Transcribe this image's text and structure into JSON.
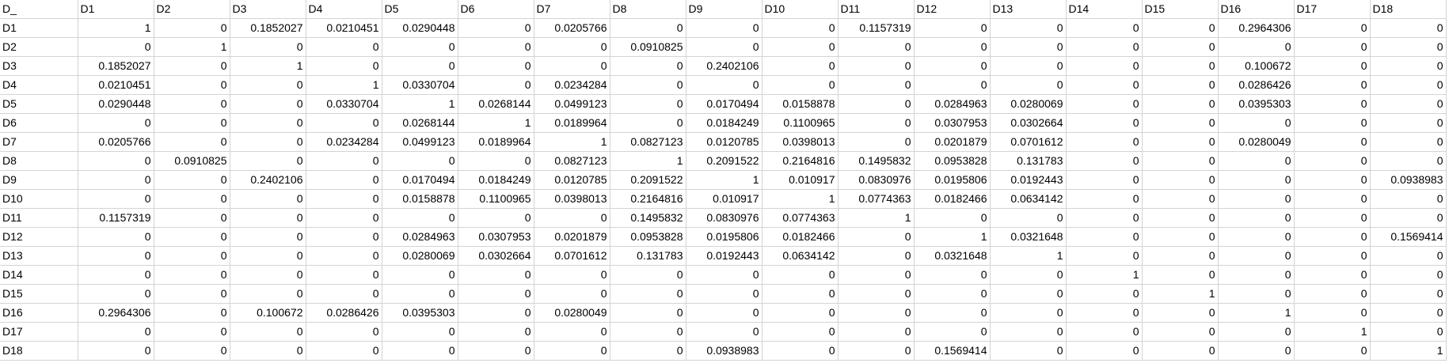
{
  "sheet": {
    "corner_label": "D_",
    "column_headers": [
      "D1",
      "D2",
      "D3",
      "D4",
      "D5",
      "D6",
      "D7",
      "D8",
      "D9",
      "D10",
      "D11",
      "D12",
      "D13",
      "D14",
      "D15",
      "D16",
      "D17",
      "D18"
    ],
    "rows": [
      {
        "label": "D1",
        "cells": [
          "1",
          "0",
          "0.1852027",
          "0.0210451",
          "0.0290448",
          "0",
          "0.0205766",
          "0",
          "0",
          "0",
          "0.1157319",
          "0",
          "0",
          "0",
          "0",
          "0.2964306",
          "0",
          "0"
        ]
      },
      {
        "label": "D2",
        "cells": [
          "0",
          "1",
          "0",
          "0",
          "0",
          "0",
          "0",
          "0.0910825",
          "0",
          "0",
          "0",
          "0",
          "0",
          "0",
          "0",
          "0",
          "0",
          "0"
        ]
      },
      {
        "label": "D3",
        "cells": [
          "0.1852027",
          "0",
          "1",
          "0",
          "0",
          "0",
          "0",
          "0",
          "0.2402106",
          "0",
          "0",
          "0",
          "0",
          "0",
          "0",
          "0.100672",
          "0",
          "0"
        ]
      },
      {
        "label": "D4",
        "cells": [
          "0.0210451",
          "0",
          "0",
          "1",
          "0.0330704",
          "0",
          "0.0234284",
          "0",
          "0",
          "0",
          "0",
          "0",
          "0",
          "0",
          "0",
          "0.0286426",
          "0",
          "0"
        ]
      },
      {
        "label": "D5",
        "cells": [
          "0.0290448",
          "0",
          "0",
          "0.0330704",
          "1",
          "0.0268144",
          "0.0499123",
          "0",
          "0.0170494",
          "0.0158878",
          "0",
          "0.0284963",
          "0.0280069",
          "0",
          "0",
          "0.0395303",
          "0",
          "0"
        ]
      },
      {
        "label": "D6",
        "cells": [
          "0",
          "0",
          "0",
          "0",
          "0.0268144",
          "1",
          "0.0189964",
          "0",
          "0.0184249",
          "0.1100965",
          "0",
          "0.0307953",
          "0.0302664",
          "0",
          "0",
          "0",
          "0",
          "0"
        ]
      },
      {
        "label": "D7",
        "cells": [
          "0.0205766",
          "0",
          "0",
          "0.0234284",
          "0.0499123",
          "0.0189964",
          "1",
          "0.0827123",
          "0.0120785",
          "0.0398013",
          "0",
          "0.0201879",
          "0.0701612",
          "0",
          "0",
          "0.0280049",
          "0",
          "0"
        ]
      },
      {
        "label": "D8",
        "cells": [
          "0",
          "0.0910825",
          "0",
          "0",
          "0",
          "0",
          "0.0827123",
          "1",
          "0.2091522",
          "0.2164816",
          "0.1495832",
          "0.0953828",
          "0.131783",
          "0",
          "0",
          "0",
          "0",
          "0"
        ]
      },
      {
        "label": "D9",
        "cells": [
          "0",
          "0",
          "0.2402106",
          "0",
          "0.0170494",
          "0.0184249",
          "0.0120785",
          "0.2091522",
          "1",
          "0.010917",
          "0.0830976",
          "0.0195806",
          "0.0192443",
          "0",
          "0",
          "0",
          "0",
          "0.0938983"
        ]
      },
      {
        "label": "D10",
        "cells": [
          "0",
          "0",
          "0",
          "0",
          "0.0158878",
          "0.1100965",
          "0.0398013",
          "0.2164816",
          "0.010917",
          "1",
          "0.0774363",
          "0.0182466",
          "0.0634142",
          "0",
          "0",
          "0",
          "0",
          "0"
        ]
      },
      {
        "label": "D11",
        "cells": [
          "0.1157319",
          "0",
          "0",
          "0",
          "0",
          "0",
          "0",
          "0.1495832",
          "0.0830976",
          "0.0774363",
          "1",
          "0",
          "0",
          "0",
          "0",
          "0",
          "0",
          "0"
        ]
      },
      {
        "label": "D12",
        "cells": [
          "0",
          "0",
          "0",
          "0",
          "0.0284963",
          "0.0307953",
          "0.0201879",
          "0.0953828",
          "0.0195806",
          "0.0182466",
          "0",
          "1",
          "0.0321648",
          "0",
          "0",
          "0",
          "0",
          "0.1569414"
        ]
      },
      {
        "label": "D13",
        "cells": [
          "0",
          "0",
          "0",
          "0",
          "0.0280069",
          "0.0302664",
          "0.0701612",
          "0.131783",
          "0.0192443",
          "0.0634142",
          "0",
          "0.0321648",
          "1",
          "0",
          "0",
          "0",
          "0",
          "0"
        ]
      },
      {
        "label": "D14",
        "cells": [
          "0",
          "0",
          "0",
          "0",
          "0",
          "0",
          "0",
          "0",
          "0",
          "0",
          "0",
          "0",
          "0",
          "1",
          "0",
          "0",
          "0",
          "0"
        ]
      },
      {
        "label": "D15",
        "cells": [
          "0",
          "0",
          "0",
          "0",
          "0",
          "0",
          "0",
          "0",
          "0",
          "0",
          "0",
          "0",
          "0",
          "0",
          "1",
          "0",
          "0",
          "0"
        ]
      },
      {
        "label": "D16",
        "cells": [
          "0.2964306",
          "0",
          "0.100672",
          "0.0286426",
          "0.0395303",
          "0",
          "0.0280049",
          "0",
          "0",
          "0",
          "0",
          "0",
          "0",
          "0",
          "0",
          "1",
          "0",
          "0"
        ]
      },
      {
        "label": "D17",
        "cells": [
          "0",
          "0",
          "0",
          "0",
          "0",
          "0",
          "0",
          "0",
          "0",
          "0",
          "0",
          "0",
          "0",
          "0",
          "0",
          "0",
          "1",
          "0"
        ]
      },
      {
        "label": "D18",
        "cells": [
          "0",
          "0",
          "0",
          "0",
          "0",
          "0",
          "0",
          "0",
          "0.0938983",
          "0",
          "0",
          "0.1569414",
          "0",
          "0",
          "0",
          "0",
          "0",
          "1"
        ]
      }
    ]
  }
}
